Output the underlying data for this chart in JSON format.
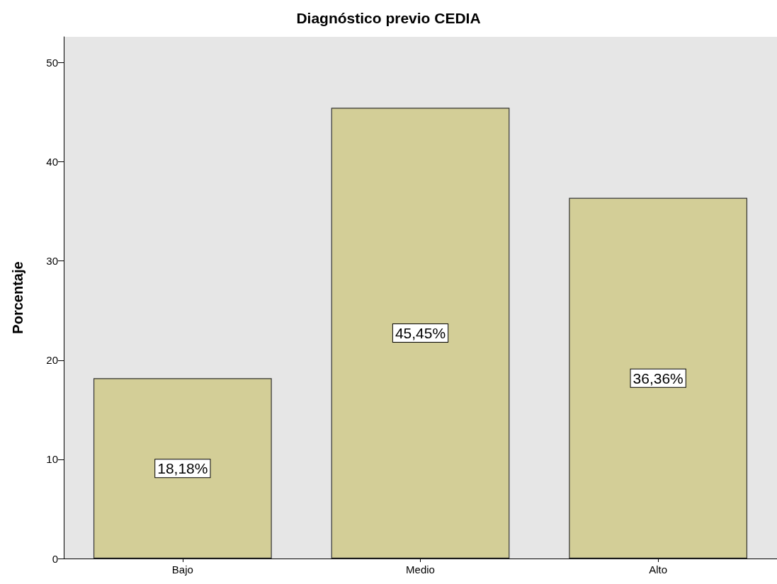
{
  "chart_data": {
    "type": "bar",
    "title": "Diagnóstico previo CEDIA",
    "ylabel": "Porcentaje",
    "categories": [
      "Bajo",
      "Medio",
      "Alto"
    ],
    "values": [
      18.18,
      45.45,
      36.36
    ],
    "value_labels": [
      "18,18%",
      "45,45%",
      "36,36%"
    ],
    "color": "#d3ce97",
    "ylim": [
      0,
      52.6
    ],
    "yticks": [
      0,
      10,
      20,
      30,
      40,
      50
    ]
  }
}
